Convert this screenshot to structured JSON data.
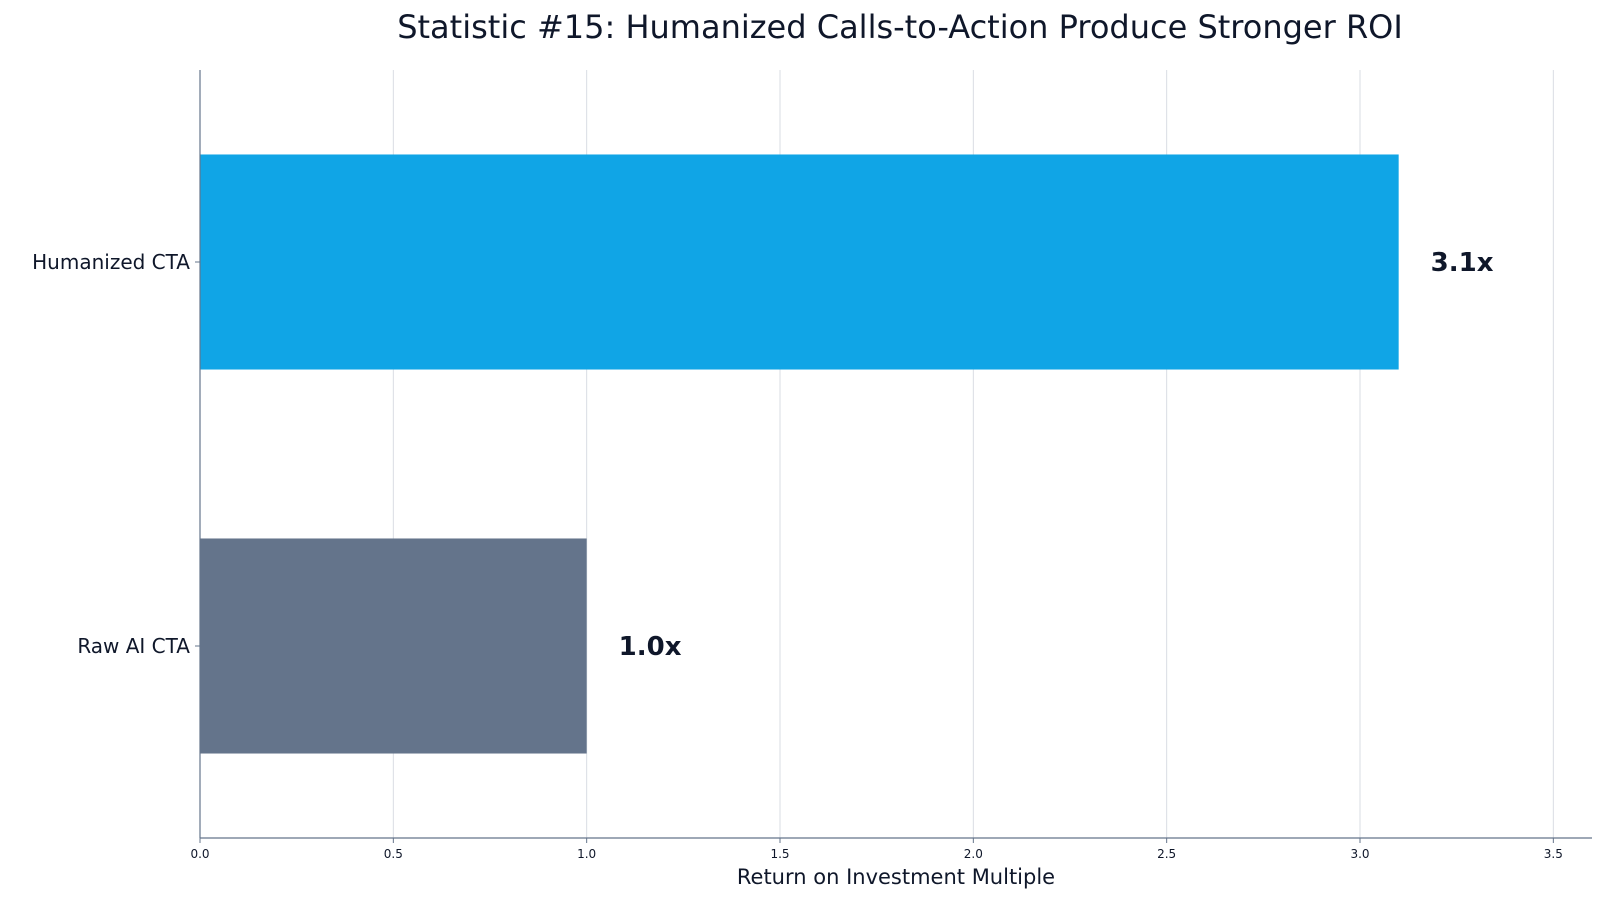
{
  "chart_data": {
    "type": "bar",
    "orientation": "horizontal",
    "title": "Statistic #15: Humanized Calls-to-Action Produce Stronger ROI",
    "xlabel": "Return on Investment Multiple",
    "ylabel": "",
    "categories": [
      "Humanized CTA",
      "Raw AI CTA"
    ],
    "values": [
      3.1,
      1.0
    ],
    "data_labels": [
      "3.1x",
      "1.0x"
    ],
    "bar_colors": [
      "#10a5e6",
      "#64748b"
    ],
    "xlim": [
      0,
      3.6
    ],
    "xticks": [
      0.0,
      0.5,
      1.0,
      1.5,
      2.0,
      2.5,
      3.0,
      3.5
    ],
    "xtick_labels": [
      "0.0",
      "0.5",
      "1.0",
      "1.5",
      "2.0",
      "2.5",
      "3.0",
      "3.5"
    ],
    "grid": "vertical",
    "legend": "none"
  }
}
